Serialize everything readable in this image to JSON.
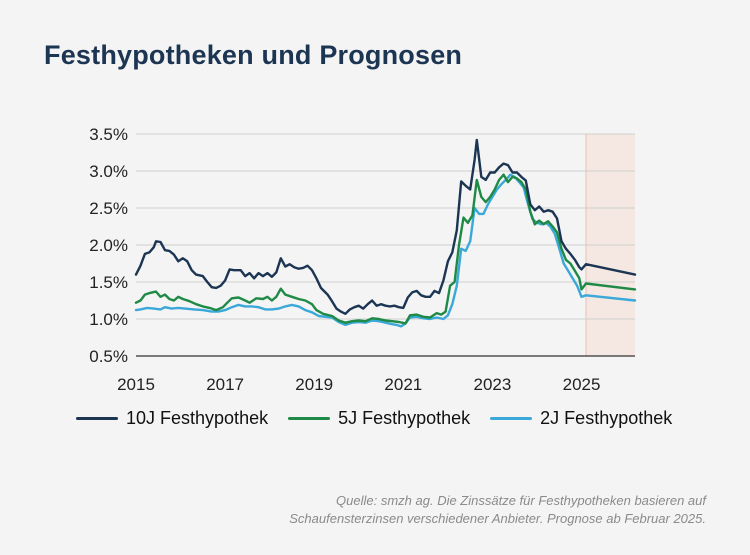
{
  "title": "Festhypotheken und Prognosen",
  "source": "Quelle: smzh ag. Die Zinssätze für Festhypotheken basieren auf Schaufensterzinsen verschiedener Anbieter. Prognose ab Februar 2025.",
  "colors": {
    "series_10j": "#1c3553",
    "series_5j": "#1e8a45",
    "series_2j": "#3aa8d8",
    "forecast_band": "#f6e3dc",
    "grid": "#d0d0d0"
  },
  "chart_data": {
    "type": "line",
    "ylim": [
      0.5,
      3.5
    ],
    "xlim": [
      2015.0,
      2026.2
    ],
    "yticks": [
      "0.5%",
      "1.0%",
      "1.5%",
      "2.0%",
      "2.5%",
      "3.0%",
      "3.5%"
    ],
    "ytick_values": [
      0.5,
      1.0,
      1.5,
      2.0,
      2.5,
      3.0,
      3.5
    ],
    "xticks": [
      "2015",
      "2017",
      "2019",
      "2021",
      "2023",
      "2025"
    ],
    "xtick_values": [
      2015,
      2017,
      2019,
      2021,
      2023,
      2025
    ],
    "grid": true,
    "legend_position": "bottom",
    "forecast_from": 2025.1,
    "series": [
      {
        "name": "10J Festhypothek",
        "points": [
          [
            2015.0,
            1.6
          ],
          [
            2015.1,
            1.72
          ],
          [
            2015.2,
            1.88
          ],
          [
            2015.3,
            1.9
          ],
          [
            2015.4,
            1.97
          ],
          [
            2015.45,
            2.05
          ],
          [
            2015.55,
            2.04
          ],
          [
            2015.65,
            1.93
          ],
          [
            2015.75,
            1.92
          ],
          [
            2015.85,
            1.87
          ],
          [
            2015.95,
            1.78
          ],
          [
            2016.05,
            1.82
          ],
          [
            2016.15,
            1.78
          ],
          [
            2016.25,
            1.66
          ],
          [
            2016.35,
            1.6
          ],
          [
            2016.5,
            1.58
          ],
          [
            2016.6,
            1.5
          ],
          [
            2016.7,
            1.43
          ],
          [
            2016.8,
            1.42
          ],
          [
            2016.9,
            1.45
          ],
          [
            2017.0,
            1.52
          ],
          [
            2017.1,
            1.67
          ],
          [
            2017.2,
            1.66
          ],
          [
            2017.35,
            1.66
          ],
          [
            2017.45,
            1.58
          ],
          [
            2017.55,
            1.62
          ],
          [
            2017.65,
            1.55
          ],
          [
            2017.75,
            1.62
          ],
          [
            2017.85,
            1.58
          ],
          [
            2017.95,
            1.62
          ],
          [
            2018.05,
            1.57
          ],
          [
            2018.15,
            1.63
          ],
          [
            2018.25,
            1.82
          ],
          [
            2018.35,
            1.71
          ],
          [
            2018.45,
            1.74
          ],
          [
            2018.55,
            1.7
          ],
          [
            2018.65,
            1.68
          ],
          [
            2018.75,
            1.69
          ],
          [
            2018.85,
            1.72
          ],
          [
            2018.95,
            1.66
          ],
          [
            2019.05,
            1.55
          ],
          [
            2019.15,
            1.42
          ],
          [
            2019.3,
            1.33
          ],
          [
            2019.4,
            1.24
          ],
          [
            2019.5,
            1.14
          ],
          [
            2019.6,
            1.1
          ],
          [
            2019.7,
            1.07
          ],
          [
            2019.8,
            1.13
          ],
          [
            2019.9,
            1.16
          ],
          [
            2020.0,
            1.18
          ],
          [
            2020.1,
            1.14
          ],
          [
            2020.2,
            1.2
          ],
          [
            2020.3,
            1.25
          ],
          [
            2020.4,
            1.18
          ],
          [
            2020.5,
            1.2
          ],
          [
            2020.6,
            1.18
          ],
          [
            2020.7,
            1.17
          ],
          [
            2020.8,
            1.18
          ],
          [
            2020.9,
            1.16
          ],
          [
            2021.0,
            1.15
          ],
          [
            2021.1,
            1.29
          ],
          [
            2021.2,
            1.36
          ],
          [
            2021.3,
            1.38
          ],
          [
            2021.4,
            1.32
          ],
          [
            2021.5,
            1.3
          ],
          [
            2021.6,
            1.3
          ],
          [
            2021.7,
            1.38
          ],
          [
            2021.8,
            1.35
          ],
          [
            2021.9,
            1.52
          ],
          [
            2022.0,
            1.78
          ],
          [
            2022.1,
            1.9
          ],
          [
            2022.2,
            2.2
          ],
          [
            2022.3,
            2.86
          ],
          [
            2022.4,
            2.8
          ],
          [
            2022.5,
            2.75
          ],
          [
            2022.6,
            3.15
          ],
          [
            2022.65,
            3.42
          ],
          [
            2022.75,
            2.92
          ],
          [
            2022.85,
            2.88
          ],
          [
            2022.95,
            2.98
          ],
          [
            2023.05,
            2.98
          ],
          [
            2023.15,
            3.05
          ],
          [
            2023.25,
            3.1
          ],
          [
            2023.35,
            3.08
          ],
          [
            2023.45,
            2.98
          ],
          [
            2023.55,
            2.98
          ],
          [
            2023.65,
            2.92
          ],
          [
            2023.75,
            2.87
          ],
          [
            2023.85,
            2.55
          ],
          [
            2023.95,
            2.47
          ],
          [
            2024.05,
            2.52
          ],
          [
            2024.15,
            2.45
          ],
          [
            2024.25,
            2.47
          ],
          [
            2024.35,
            2.45
          ],
          [
            2024.45,
            2.36
          ],
          [
            2024.55,
            2.05
          ],
          [
            2024.65,
            1.95
          ],
          [
            2024.75,
            1.88
          ],
          [
            2024.85,
            1.8
          ],
          [
            2024.95,
            1.7
          ],
          [
            2025.0,
            1.67
          ],
          [
            2025.1,
            1.74
          ],
          [
            2026.2,
            1.6
          ]
        ]
      },
      {
        "name": "5J Festhypothek",
        "points": [
          [
            2015.0,
            1.22
          ],
          [
            2015.1,
            1.25
          ],
          [
            2015.2,
            1.33
          ],
          [
            2015.3,
            1.35
          ],
          [
            2015.45,
            1.37
          ],
          [
            2015.55,
            1.3
          ],
          [
            2015.65,
            1.33
          ],
          [
            2015.75,
            1.27
          ],
          [
            2015.85,
            1.25
          ],
          [
            2015.95,
            1.3
          ],
          [
            2016.05,
            1.27
          ],
          [
            2016.2,
            1.24
          ],
          [
            2016.35,
            1.2
          ],
          [
            2016.5,
            1.17
          ],
          [
            2016.65,
            1.15
          ],
          [
            2016.8,
            1.12
          ],
          [
            2016.95,
            1.16
          ],
          [
            2017.05,
            1.22
          ],
          [
            2017.15,
            1.28
          ],
          [
            2017.3,
            1.29
          ],
          [
            2017.45,
            1.25
          ],
          [
            2017.55,
            1.22
          ],
          [
            2017.7,
            1.28
          ],
          [
            2017.85,
            1.27
          ],
          [
            2017.95,
            1.3
          ],
          [
            2018.05,
            1.25
          ],
          [
            2018.15,
            1.3
          ],
          [
            2018.25,
            1.41
          ],
          [
            2018.35,
            1.33
          ],
          [
            2018.5,
            1.3
          ],
          [
            2018.65,
            1.27
          ],
          [
            2018.8,
            1.25
          ],
          [
            2018.95,
            1.2
          ],
          [
            2019.05,
            1.12
          ],
          [
            2019.2,
            1.07
          ],
          [
            2019.4,
            1.04
          ],
          [
            2019.55,
            0.98
          ],
          [
            2019.7,
            0.95
          ],
          [
            2019.85,
            0.97
          ],
          [
            2020.0,
            0.98
          ],
          [
            2020.15,
            0.97
          ],
          [
            2020.3,
            1.01
          ],
          [
            2020.45,
            1.0
          ],
          [
            2020.6,
            0.98
          ],
          [
            2020.75,
            0.97
          ],
          [
            2020.9,
            0.96
          ],
          [
            2021.05,
            0.94
          ],
          [
            2021.15,
            1.05
          ],
          [
            2021.3,
            1.06
          ],
          [
            2021.45,
            1.03
          ],
          [
            2021.6,
            1.02
          ],
          [
            2021.75,
            1.08
          ],
          [
            2021.85,
            1.06
          ],
          [
            2021.95,
            1.1
          ],
          [
            2022.05,
            1.45
          ],
          [
            2022.15,
            1.5
          ],
          [
            2022.25,
            2.0
          ],
          [
            2022.35,
            2.37
          ],
          [
            2022.45,
            2.3
          ],
          [
            2022.55,
            2.4
          ],
          [
            2022.65,
            2.88
          ],
          [
            2022.75,
            2.65
          ],
          [
            2022.85,
            2.58
          ],
          [
            2022.95,
            2.65
          ],
          [
            2023.05,
            2.75
          ],
          [
            2023.15,
            2.88
          ],
          [
            2023.25,
            2.95
          ],
          [
            2023.35,
            2.85
          ],
          [
            2023.45,
            2.92
          ],
          [
            2023.55,
            2.9
          ],
          [
            2023.65,
            2.85
          ],
          [
            2023.75,
            2.75
          ],
          [
            2023.85,
            2.45
          ],
          [
            2023.95,
            2.28
          ],
          [
            2024.05,
            2.33
          ],
          [
            2024.15,
            2.28
          ],
          [
            2024.25,
            2.32
          ],
          [
            2024.35,
            2.25
          ],
          [
            2024.45,
            2.17
          ],
          [
            2024.55,
            1.95
          ],
          [
            2024.65,
            1.8
          ],
          [
            2024.75,
            1.75
          ],
          [
            2024.85,
            1.65
          ],
          [
            2024.95,
            1.55
          ],
          [
            2025.0,
            1.4
          ],
          [
            2025.1,
            1.48
          ],
          [
            2026.2,
            1.4
          ]
        ]
      },
      {
        "name": "2J Festhypothek",
        "points": [
          [
            2015.0,
            1.12
          ],
          [
            2015.1,
            1.13
          ],
          [
            2015.25,
            1.15
          ],
          [
            2015.4,
            1.14
          ],
          [
            2015.55,
            1.13
          ],
          [
            2015.65,
            1.16
          ],
          [
            2015.8,
            1.14
          ],
          [
            2015.95,
            1.15
          ],
          [
            2016.1,
            1.14
          ],
          [
            2016.3,
            1.13
          ],
          [
            2016.5,
            1.12
          ],
          [
            2016.7,
            1.1
          ],
          [
            2016.85,
            1.1
          ],
          [
            2017.0,
            1.12
          ],
          [
            2017.15,
            1.16
          ],
          [
            2017.3,
            1.19
          ],
          [
            2017.45,
            1.17
          ],
          [
            2017.6,
            1.17
          ],
          [
            2017.75,
            1.16
          ],
          [
            2017.9,
            1.13
          ],
          [
            2018.05,
            1.13
          ],
          [
            2018.2,
            1.14
          ],
          [
            2018.35,
            1.17
          ],
          [
            2018.5,
            1.19
          ],
          [
            2018.65,
            1.17
          ],
          [
            2018.8,
            1.12
          ],
          [
            2018.95,
            1.09
          ],
          [
            2019.1,
            1.04
          ],
          [
            2019.25,
            1.03
          ],
          [
            2019.4,
            1.02
          ],
          [
            2019.55,
            0.96
          ],
          [
            2019.7,
            0.92
          ],
          [
            2019.85,
            0.95
          ],
          [
            2020.0,
            0.96
          ],
          [
            2020.15,
            0.95
          ],
          [
            2020.3,
            0.98
          ],
          [
            2020.45,
            0.97
          ],
          [
            2020.6,
            0.95
          ],
          [
            2020.75,
            0.93
          ],
          [
            2020.85,
            0.92
          ],
          [
            2020.95,
            0.9
          ],
          [
            2021.05,
            0.94
          ],
          [
            2021.15,
            1.02
          ],
          [
            2021.3,
            1.03
          ],
          [
            2021.45,
            1.01
          ],
          [
            2021.6,
            1.0
          ],
          [
            2021.75,
            1.02
          ],
          [
            2021.9,
            1.0
          ],
          [
            2022.0,
            1.05
          ],
          [
            2022.1,
            1.2
          ],
          [
            2022.2,
            1.45
          ],
          [
            2022.3,
            1.95
          ],
          [
            2022.4,
            1.92
          ],
          [
            2022.5,
            2.05
          ],
          [
            2022.6,
            2.5
          ],
          [
            2022.7,
            2.42
          ],
          [
            2022.8,
            2.42
          ],
          [
            2022.9,
            2.55
          ],
          [
            2023.0,
            2.65
          ],
          [
            2023.1,
            2.75
          ],
          [
            2023.2,
            2.82
          ],
          [
            2023.3,
            2.88
          ],
          [
            2023.4,
            2.95
          ],
          [
            2023.5,
            2.92
          ],
          [
            2023.6,
            2.85
          ],
          [
            2023.7,
            2.78
          ],
          [
            2023.8,
            2.55
          ],
          [
            2023.9,
            2.35
          ],
          [
            2024.0,
            2.3
          ],
          [
            2024.1,
            2.28
          ],
          [
            2024.2,
            2.3
          ],
          [
            2024.3,
            2.25
          ],
          [
            2024.4,
            2.15
          ],
          [
            2024.5,
            1.95
          ],
          [
            2024.6,
            1.75
          ],
          [
            2024.7,
            1.65
          ],
          [
            2024.8,
            1.55
          ],
          [
            2024.9,
            1.45
          ],
          [
            2025.0,
            1.3
          ],
          [
            2025.1,
            1.32
          ],
          [
            2026.2,
            1.25
          ]
        ]
      }
    ]
  }
}
